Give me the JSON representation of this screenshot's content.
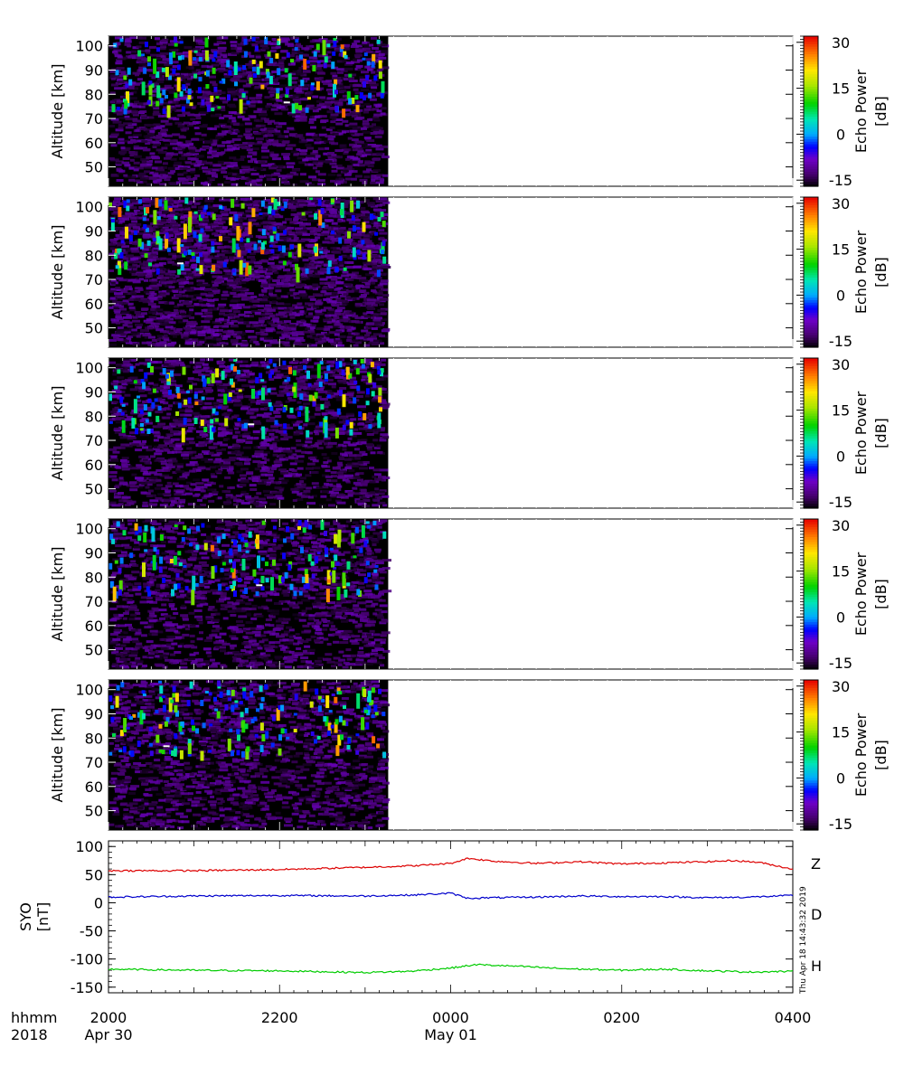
{
  "chart_data": [
    {
      "type": "heatmap",
      "ylabel": "Altitude [km]",
      "yticks": [
        50,
        60,
        70,
        80,
        90,
        100
      ],
      "ylim": [
        42,
        104
      ],
      "xlim_hours": [
        20,
        28
      ],
      "data_end_hour": 23.27,
      "colorbar": {
        "label_line1": "Echo Power",
        "label_line2": "[dB]",
        "range": [
          -17,
          32
        ],
        "ticks": [
          "30",
          "15",
          "0",
          "-15"
        ],
        "tick_values": [
          30,
          15,
          0,
          -15
        ]
      },
      "background": "#000000",
      "bright_echo_altitude_band_km": [
        74,
        104
      ]
    },
    {
      "type": "heatmap",
      "ylabel": "Altitude [km]",
      "yticks": [
        50,
        60,
        70,
        80,
        90,
        100
      ],
      "ylim": [
        42,
        104
      ],
      "colorbar": {
        "label_line1": "Echo Power",
        "label_line2": "[dB]",
        "range": [
          -17,
          32
        ],
        "ticks": [
          "30",
          "15",
          "0",
          "-15"
        ],
        "tick_values": [
          30,
          15,
          0,
          -15
        ]
      },
      "background": "#000000",
      "bright_echo_altitude_band_km": [
        74,
        104
      ]
    },
    {
      "type": "heatmap",
      "ylabel": "Altitude [km]",
      "yticks": [
        50,
        60,
        70,
        80,
        90,
        100
      ],
      "ylim": [
        42,
        104
      ],
      "colorbar": {
        "label_line1": "Echo Power",
        "label_line2": "[dB]",
        "range": [
          -17,
          32
        ],
        "ticks": [
          "30",
          "15",
          "0",
          "-15"
        ],
        "tick_values": [
          30,
          15,
          0,
          -15
        ]
      },
      "background": "#000000",
      "bright_echo_altitude_band_km": [
        74,
        104
      ]
    },
    {
      "type": "heatmap",
      "ylabel": "Altitude [km]",
      "yticks": [
        50,
        60,
        70,
        80,
        90,
        100
      ],
      "ylim": [
        42,
        104
      ],
      "colorbar": {
        "label_line1": "Echo Power",
        "label_line2": "[dB]",
        "range": [
          -17,
          32
        ],
        "ticks": [
          "30",
          "15",
          "0",
          "-15"
        ],
        "tick_values": [
          30,
          15,
          0,
          -15
        ]
      },
      "background": "#000000",
      "bright_echo_altitude_band_km": [
        74,
        104
      ]
    },
    {
      "type": "heatmap",
      "ylabel": "Altitude [km]",
      "yticks": [
        50,
        60,
        70,
        80,
        90,
        100
      ],
      "ylim": [
        42,
        104
      ],
      "colorbar": {
        "label_line1": "Echo Power",
        "label_line2": "[dB]",
        "range": [
          -17,
          32
        ],
        "ticks": [
          "30",
          "15",
          "0",
          "-15"
        ],
        "tick_values": [
          30,
          15,
          0,
          -15
        ]
      },
      "background": "#000000",
      "bright_echo_altitude_band_km": [
        74,
        104
      ]
    },
    {
      "type": "line",
      "ylabel_line1": "SYO",
      "ylabel_line2": "[nT]",
      "ylim": [
        -160,
        110
      ],
      "yticks": [
        100,
        50,
        0,
        -50,
        -100,
        -150
      ],
      "xlim_hours": [
        20,
        28
      ],
      "series": [
        {
          "name": "Z",
          "color": "#dd0000",
          "x_hours": [
            20,
            21,
            22,
            23,
            23.6,
            24,
            24.2,
            24.5,
            25,
            25.5,
            26,
            26.5,
            27,
            27.3,
            27.6,
            28
          ],
          "values": [
            57,
            57,
            59,
            63,
            66,
            70,
            79,
            74,
            70,
            73,
            69,
            71,
            73,
            75,
            72,
            60
          ]
        },
        {
          "name": "D",
          "color": "#0000cc",
          "x_hours": [
            20,
            21,
            22,
            23,
            23.6,
            24,
            24.2,
            24.5,
            25,
            25.5,
            26,
            26.5,
            27,
            27.5,
            28
          ],
          "values": [
            10,
            12,
            13,
            12,
            14,
            17,
            8,
            9,
            10,
            12,
            11,
            11,
            9,
            10,
            13
          ]
        },
        {
          "name": "H",
          "color": "#00cc00",
          "x_hours": [
            20,
            21,
            22,
            23,
            23.5,
            24,
            24.3,
            24.8,
            25.3,
            26,
            26.5,
            27,
            27.5,
            28
          ],
          "values": [
            -118,
            -120,
            -121,
            -124,
            -122,
            -116,
            -110,
            -113,
            -117,
            -120,
            -118,
            -121,
            -123,
            -122
          ]
        }
      ]
    }
  ],
  "xaxis": {
    "left_label_line1": "hhmm",
    "left_label_line2": "2018",
    "ticks": [
      {
        "hour": 20,
        "label": "2000",
        "date": "Apr 30"
      },
      {
        "hour": 22,
        "label": "2200",
        "date": ""
      },
      {
        "hour": 24,
        "label": "0000",
        "date": "May 01"
      },
      {
        "hour": 26,
        "label": "0200",
        "date": ""
      },
      {
        "hour": 28,
        "label": "0400",
        "date": ""
      }
    ]
  },
  "footer_timestamp": "Thu Apr 18 14:43:32 2019"
}
